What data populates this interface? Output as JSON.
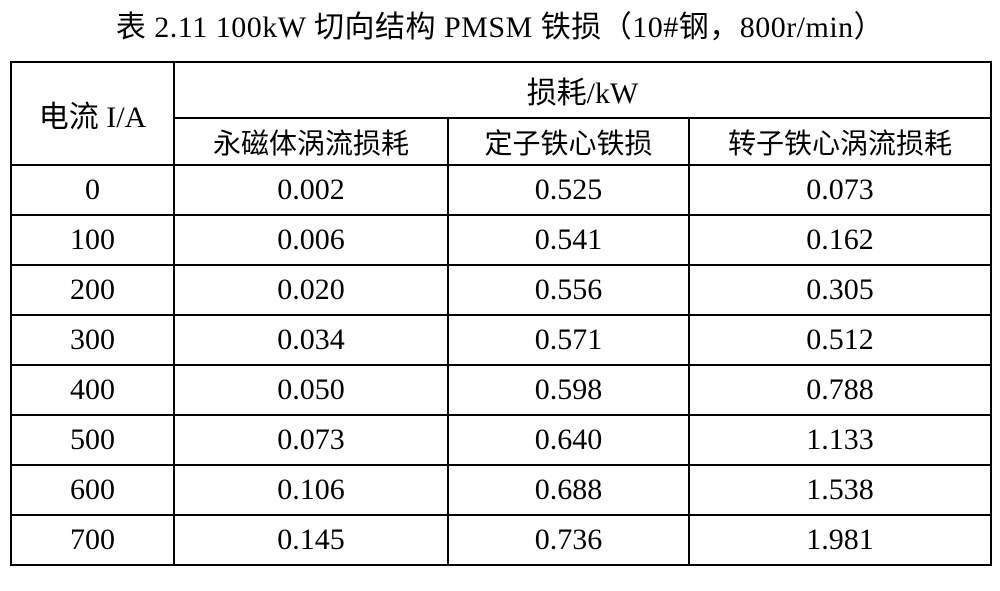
{
  "caption": "表 2.11 100kW 切向结构 PMSM 铁损（10#钢，800r/min）",
  "table": {
    "current_header": "电流 I/A",
    "group_header": "损耗/kW",
    "sub_headers": [
      "永磁体涡流损耗",
      "定子铁心铁损",
      "转子铁心涡流损耗"
    ],
    "rows": [
      [
        "0",
        "0.002",
        "0.525",
        "0.073"
      ],
      [
        "100",
        "0.006",
        "0.541",
        "0.162"
      ],
      [
        "200",
        "0.020",
        "0.556",
        "0.305"
      ],
      [
        "300",
        "0.034",
        "0.571",
        "0.512"
      ],
      [
        "400",
        "0.050",
        "0.598",
        "0.788"
      ],
      [
        "500",
        "0.073",
        "0.640",
        "1.133"
      ],
      [
        "600",
        "0.106",
        "0.688",
        "1.538"
      ],
      [
        "700",
        "0.145",
        "0.736",
        "1.981"
      ]
    ]
  },
  "chart_data": {
    "type": "table",
    "title": "表 2.11 100kW 切向结构 PMSM 铁损（10#钢，800r/min）",
    "columns": [
      "电流 I/A",
      "永磁体涡流损耗 (kW)",
      "定子铁心铁损 (kW)",
      "转子铁心涡流损耗 (kW)"
    ],
    "current_A": [
      0,
      100,
      200,
      300,
      400,
      500,
      600,
      700
    ],
    "series": [
      {
        "name": "永磁体涡流损耗",
        "values": [
          0.002,
          0.006,
          0.02,
          0.034,
          0.05,
          0.073,
          0.106,
          0.145
        ]
      },
      {
        "name": "定子铁心铁损",
        "values": [
          0.525,
          0.541,
          0.556,
          0.571,
          0.598,
          0.64,
          0.688,
          0.736
        ]
      },
      {
        "name": "转子铁心涡流损耗",
        "values": [
          0.073,
          0.162,
          0.305,
          0.512,
          0.788,
          1.133,
          1.538,
          1.981
        ]
      }
    ]
  },
  "colors": {
    "text": "#000000",
    "border": "#000000",
    "background": "#ffffff"
  }
}
